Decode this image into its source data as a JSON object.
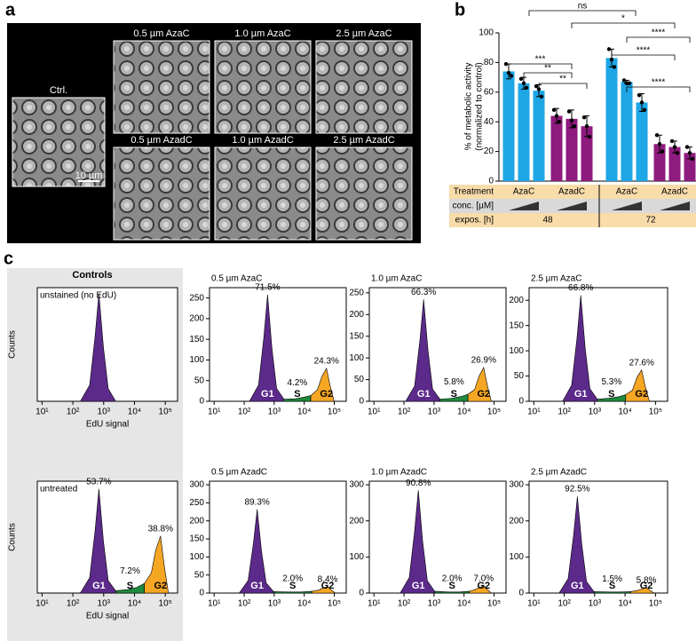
{
  "panels": [
    "a",
    "b",
    "c"
  ],
  "micrographs": {
    "titles": [
      "Ctrl.",
      "0.5 µm AzaC",
      "1.0 µm AzaC",
      "2.5 µm AzaC",
      "0.5 µm AzadC",
      "1.0 µm AzadC",
      "2.5 µm AzadC"
    ],
    "scale_bar": "10 µm"
  },
  "controls_header": "Controls",
  "chart_data": [
    {
      "type": "bar",
      "ylabel": [
        "% of metabolic activity",
        "(normalized to control)"
      ],
      "ylim": [
        0,
        100
      ],
      "yticks": [
        0,
        20,
        40,
        60,
        80,
        100
      ],
      "series": [
        {
          "name": "AzaC",
          "color": "#1ea6e6",
          "values": [
            74,
            66,
            61,
            83,
            67,
            53
          ],
          "errors": [
            5,
            4,
            4,
            6,
            1,
            6
          ],
          "replicates": [
            [
              79,
              73,
              71
            ],
            [
              69,
              66,
              63
            ],
            [
              64,
              62,
              57
            ],
            [
              89,
              82,
              77
            ],
            [
              68,
              66,
              66
            ],
            [
              58,
              53,
              48
            ]
          ]
        },
        {
          "name": "AzadC",
          "color": "#8e1b7e",
          "values": [
            44,
            42,
            37,
            25,
            23,
            19
          ],
          "errors": [
            5,
            6,
            7,
            6,
            4,
            4
          ],
          "replicates": [
            [
              48,
              44,
              40
            ],
            [
              47,
              41,
              37
            ],
            [
              43,
              37,
              30
            ],
            [
              31,
              25,
              20
            ],
            [
              27,
              23,
              19
            ],
            [
              23,
              19,
              15
            ]
          ]
        }
      ],
      "annotations": [
        "ns",
        "*",
        "****",
        "***",
        "**",
        "**",
        "****",
        "****"
      ],
      "table": {
        "row_labels": [
          "Treatment",
          "conc. [µM]",
          "expos. [h]"
        ],
        "exposures": [
          "48",
          "72"
        ]
      }
    },
    {
      "type": "area",
      "title": "unstained (no EdU)",
      "ylabel": "Counts",
      "xlabel": "EdU signal",
      "xscale": "log",
      "xlim": [
        7,
        250000
      ],
      "ylim": [
        0,
        275
      ],
      "xticks": [
        {
          "value": 10,
          "label": "10¹"
        },
        {
          "value": 100,
          "label": "10²"
        },
        {
          "value": 1000,
          "label": "10³"
        },
        {
          "value": 10000,
          "label": "10⁴"
        },
        {
          "value": 100000,
          "label": "10⁵"
        }
      ],
      "series": [
        {
          "color": "#5c2a8a",
          "x": [
            175,
            350,
            525,
            700,
            980,
            1400,
            2450
          ],
          "values": [
            0,
            39,
            157,
            262,
            131,
            31,
            0
          ]
        }
      ]
    },
    {
      "type": "area",
      "title": "0.5 µm AzaC",
      "xscale": "log",
      "xlim": [
        7,
        250000
      ],
      "ylim": [
        0,
        275
      ],
      "yticks": [
        0,
        50,
        100,
        150,
        200,
        250
      ],
      "xticks": [
        {
          "value": 10,
          "label": "10¹"
        },
        {
          "value": 100,
          "label": "10²"
        },
        {
          "value": 1000,
          "label": "10³"
        },
        {
          "value": 10000,
          "label": "10⁴"
        },
        {
          "value": 100000,
          "label": "10⁵"
        }
      ],
      "series": [
        {
          "name": "G1",
          "label": "71.5%",
          "color": "#5c2a8a",
          "x": [
            150,
            300,
            450,
            600,
            840,
            1200,
            2100
          ],
          "values": [
            0,
            39,
            155,
            258,
            129,
            31,
            5
          ]
        },
        {
          "name": "S",
          "label": "4.2%",
          "color": "#1e8a3c",
          "x": [
            2100,
            5000,
            10000,
            16500
          ],
          "values": [
            5,
            6,
            10,
            14
          ]
        },
        {
          "name": "G2",
          "label": "24.3%",
          "color": "#f5a623",
          "x": [
            16500,
            27500,
            38500,
            55000,
            71500,
            99000
          ],
          "values": [
            14,
            28,
            60,
            80,
            40,
            0
          ]
        }
      ]
    },
    {
      "type": "area",
      "title": "1.0 µm AzaC",
      "xscale": "log",
      "xlim": [
        7,
        250000
      ],
      "ylim": [
        0,
        262
      ],
      "yticks": [
        0,
        50,
        100,
        150,
        200,
        250
      ],
      "xticks": [
        {
          "value": 10,
          "label": "10¹"
        },
        {
          "value": 100,
          "label": "10²"
        },
        {
          "value": 1000,
          "label": "10³"
        },
        {
          "value": 10000,
          "label": "10⁴"
        },
        {
          "value": 100000,
          "label": "10⁵"
        }
      ],
      "series": [
        {
          "name": "G1",
          "label": "66.3%",
          "color": "#5c2a8a",
          "x": [
            113,
            225,
            338,
            450,
            630,
            900,
            1575
          ],
          "values": [
            0,
            35,
            141,
            235,
            118,
            28,
            5
          ]
        },
        {
          "name": "S",
          "label": "5.8%",
          "color": "#1e8a3c",
          "x": [
            1575,
            4000,
            8000,
            13500
          ],
          "values": [
            5,
            7,
            11,
            16
          ]
        },
        {
          "name": "G2",
          "label": "26.9%",
          "color": "#f5a623",
          "x": [
            13500,
            22500,
            31500,
            45000,
            58500,
            81000
          ],
          "values": [
            16,
            27,
            58,
            78,
            39,
            0
          ]
        }
      ]
    },
    {
      "type": "area",
      "title": "2.5 µm AzaC",
      "xscale": "log",
      "xlim": [
        7,
        250000
      ],
      "ylim": [
        0,
        225
      ],
      "yticks": [
        0,
        50,
        100,
        150,
        200
      ],
      "xticks": [
        {
          "value": 10,
          "label": "10¹"
        },
        {
          "value": 100,
          "label": "10²"
        },
        {
          "value": 1000,
          "label": "10³"
        },
        {
          "value": 10000,
          "label": "10⁴"
        },
        {
          "value": 100000,
          "label": "10⁵"
        }
      ],
      "series": [
        {
          "name": "G1",
          "label": "66.8%",
          "color": "#5c2a8a",
          "x": [
            88,
            175,
            263,
            350,
            490,
            700,
            1225
          ],
          "values": [
            0,
            32,
            126,
            210,
            105,
            25,
            4
          ]
        },
        {
          "name": "S",
          "label": "5.3%",
          "color": "#1e8a3c",
          "x": [
            1225,
            3000,
            6000,
            10500
          ],
          "values": [
            4,
            6,
            9,
            13
          ]
        },
        {
          "name": "G2",
          "label": "27.6%",
          "color": "#f5a623",
          "x": [
            10500,
            17500,
            24500,
            35000,
            45500,
            63000
          ],
          "values": [
            13,
            22,
            47,
            62,
            31,
            0
          ]
        }
      ]
    },
    {
      "type": "area",
      "title": "untreated",
      "ylabel": "Counts",
      "xlabel": "EdU signal",
      "xscale": "log",
      "xlim": [
        7,
        250000
      ],
      "ylim": [
        0,
        290
      ],
      "xticks": [
        {
          "value": 10,
          "label": "10¹"
        },
        {
          "value": 100,
          "label": "10²"
        },
        {
          "value": 1000,
          "label": "10³"
        },
        {
          "value": 10000,
          "label": "10⁴"
        },
        {
          "value": 100000,
          "label": "10⁵"
        }
      ],
      "series": [
        {
          "name": "G1",
          "label": "53.7%",
          "color": "#5c2a8a",
          "x": [
            175,
            350,
            525,
            700,
            980,
            1400,
            2450
          ],
          "values": [
            0,
            40,
            162,
            270,
            135,
            32,
            6
          ]
        },
        {
          "name": "S",
          "label": "7.2%",
          "color": "#1e8a3c",
          "x": [
            2450,
            6000,
            12000,
            21000
          ],
          "values": [
            6,
            9,
            15,
            25
          ]
        },
        {
          "name": "G2",
          "label": "38.8%",
          "color": "#f5a623",
          "x": [
            21000,
            35000,
            49000,
            70000,
            91000,
            126000
          ],
          "values": [
            25,
            52,
            111,
            148,
            74,
            0
          ]
        }
      ]
    },
    {
      "type": "area",
      "title": "0.5 µm AzadC",
      "xscale": "log",
      "xlim": [
        7,
        250000
      ],
      "ylim": [
        0,
        310
      ],
      "yticks": [
        0,
        50,
        100,
        150,
        200,
        250,
        300
      ],
      "xticks": [
        {
          "value": 10,
          "label": "10¹"
        },
        {
          "value": 100,
          "label": "10²"
        },
        {
          "value": 1000,
          "label": "10³"
        },
        {
          "value": 10000,
          "label": "10⁴"
        },
        {
          "value": 100000,
          "label": "10⁵"
        }
      ],
      "series": [
        {
          "name": "G1",
          "label": "89.3%",
          "color": "#5c2a8a",
          "x": [
            68,
            135,
            203,
            270,
            378,
            540,
            945
          ],
          "values": [
            0,
            35,
            139,
            232,
            116,
            28,
            4
          ]
        },
        {
          "name": "S",
          "label": "2.0%",
          "color": "#1e8a3c",
          "x": [
            945,
            3000,
            8000,
            18000
          ],
          "values": [
            4,
            3,
            3,
            5
          ]
        },
        {
          "name": "G2",
          "label": "8.4%",
          "color": "#f5a623",
          "x": [
            18000,
            30000,
            42000,
            60000,
            78000,
            108000
          ],
          "values": [
            5,
            8,
            14,
            18,
            9,
            0
          ]
        }
      ]
    },
    {
      "type": "area",
      "title": "1.0 µm AzadC",
      "xscale": "log",
      "xlim": [
        7,
        250000
      ],
      "ylim": [
        0,
        310
      ],
      "yticks": [
        0,
        100,
        200,
        300
      ],
      "xticks": [
        {
          "value": 10,
          "label": "10¹"
        },
        {
          "value": 100,
          "label": "10²"
        },
        {
          "value": 1000,
          "label": "10³"
        },
        {
          "value": 10000,
          "label": "10⁴"
        },
        {
          "value": 100000,
          "label": "10⁵"
        }
      ],
      "series": [
        {
          "name": "G1",
          "label": "90.8%",
          "color": "#5c2a8a",
          "x": [
            75,
            150,
            225,
            300,
            420,
            600,
            1050
          ],
          "values": [
            0,
            43,
            171,
            285,
            143,
            34,
            5
          ]
        },
        {
          "name": "S",
          "label": "2.0%",
          "color": "#1e8a3c",
          "x": [
            1050,
            3000,
            7000,
            15000
          ],
          "values": [
            5,
            3,
            3,
            5
          ]
        },
        {
          "name": "G2",
          "label": "7.0%",
          "color": "#f5a623",
          "x": [
            15000,
            22500,
            31500,
            45000,
            58500,
            81000
          ],
          "values": [
            5,
            9,
            15,
            20,
            10,
            0
          ]
        }
      ]
    },
    {
      "type": "area",
      "title": "2.5 µm AzadC",
      "xscale": "log",
      "xlim": [
        7,
        250000
      ],
      "ylim": [
        0,
        310
      ],
      "yticks": [
        0,
        100,
        200,
        300
      ],
      "xticks": [
        {
          "value": 10,
          "label": "10¹"
        },
        {
          "value": 100,
          "label": "10²"
        },
        {
          "value": 1000,
          "label": "10³"
        },
        {
          "value": 10000,
          "label": "10⁴"
        },
        {
          "value": 100000,
          "label": "10⁵"
        }
      ],
      "series": [
        {
          "name": "G1",
          "label": "92.5%",
          "color": "#5c2a8a",
          "x": [
            68,
            135,
            203,
            270,
            378,
            540,
            945
          ],
          "values": [
            0,
            40,
            161,
            268,
            134,
            32,
            4
          ]
        },
        {
          "name": "S",
          "label": "1.5%",
          "color": "#1e8a3c",
          "x": [
            945,
            3000,
            7000,
            15000
          ],
          "values": [
            4,
            3,
            3,
            4
          ]
        },
        {
          "name": "G2",
          "label": "5.8%",
          "color": "#f5a623",
          "x": [
            15000,
            25000,
            35000,
            50000,
            65000,
            90000
          ],
          "values": [
            4,
            7,
            11,
            15,
            8,
            0
          ]
        }
      ]
    }
  ]
}
